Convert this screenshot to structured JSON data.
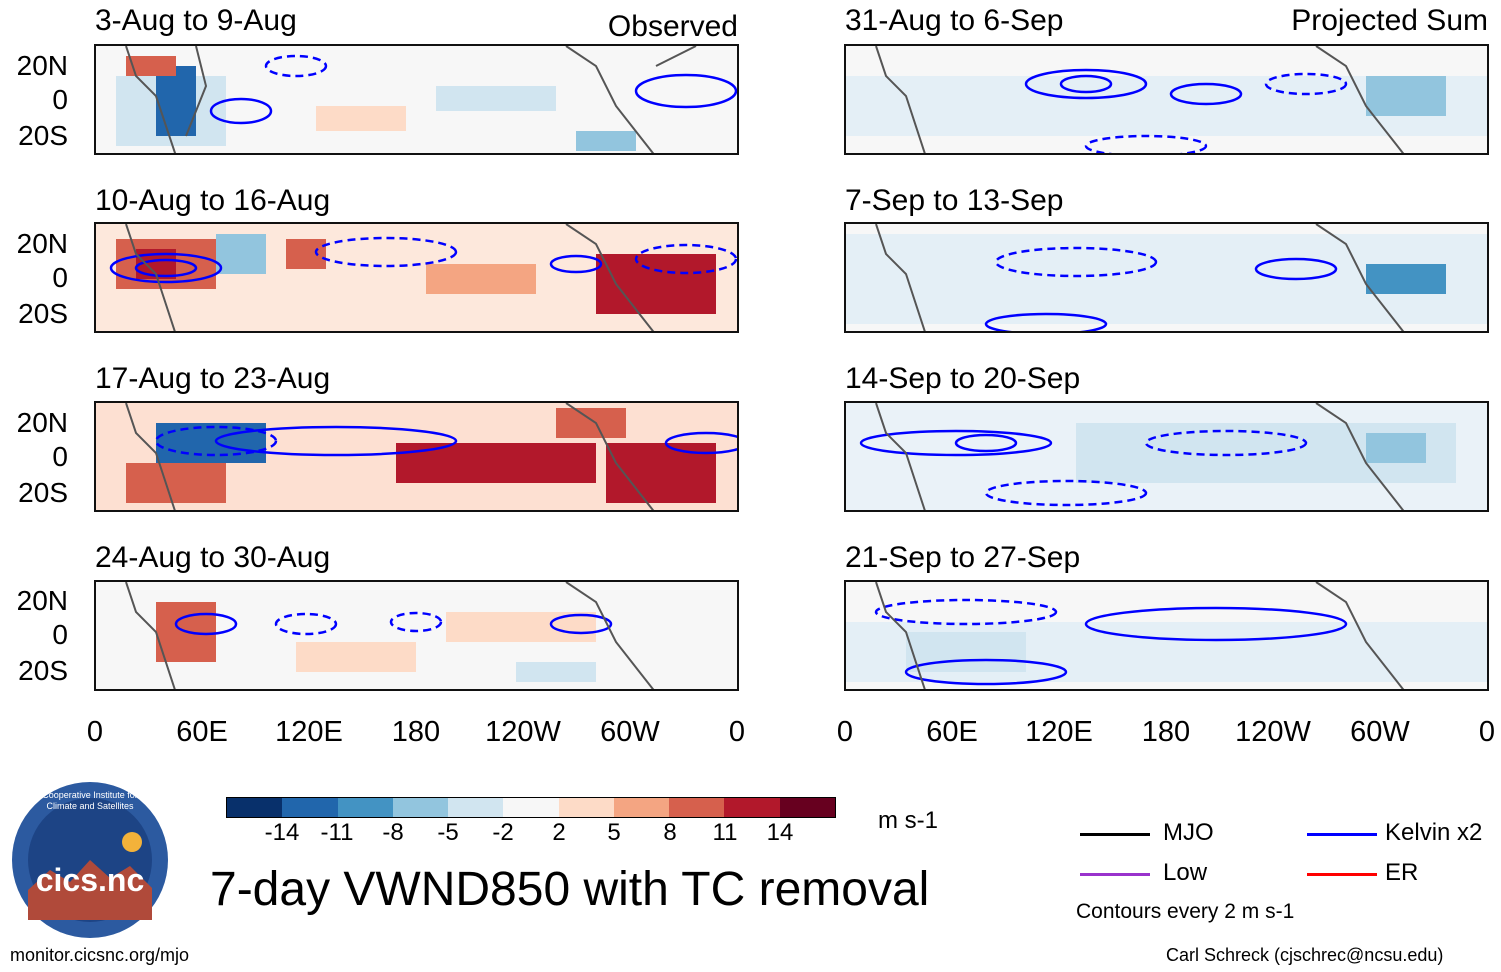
{
  "headers": {
    "left": "Observed",
    "right": "Projected Sum"
  },
  "panels": [
    {
      "period": "3-Aug to 9-Aug",
      "column": "observed"
    },
    {
      "period": "10-Aug to 16-Aug",
      "column": "observed"
    },
    {
      "period": "17-Aug to 23-Aug",
      "column": "observed"
    },
    {
      "period": "24-Aug to 30-Aug",
      "column": "observed"
    },
    {
      "period": "31-Aug to 6-Sep",
      "column": "projected"
    },
    {
      "period": "7-Sep to 13-Sep",
      "column": "projected"
    },
    {
      "period": "14-Sep to 20-Sep",
      "column": "projected"
    },
    {
      "period": "21-Sep to 27-Sep",
      "column": "projected"
    }
  ],
  "lat_labels": [
    "20N",
    "0",
    "20S"
  ],
  "lon_labels": [
    "0",
    "60E",
    "120E",
    "180",
    "120W",
    "60W",
    "0"
  ],
  "colorbar": {
    "labels": [
      "-14",
      "-11",
      "-8",
      "-5",
      "-2",
      "2",
      "5",
      "8",
      "11",
      "14"
    ],
    "colors": [
      "#08306b",
      "#2166ac",
      "#4393c3",
      "#92c5de",
      "#d1e5f0",
      "#f7f7f7",
      "#fddbc7",
      "#f4a582",
      "#d6604d",
      "#b2182b",
      "#67001f"
    ],
    "units": "m s-1"
  },
  "title": "7-day VWND850 with TC removal",
  "legend": {
    "items": [
      {
        "label": "MJO",
        "color": "#000000"
      },
      {
        "label": "Kelvin x2",
        "color": "#0000ff"
      },
      {
        "label": "Low",
        "color": "#9932cc"
      },
      {
        "label": "ER",
        "color": "#ff0000"
      }
    ],
    "note": "Contours every 2 m s-1"
  },
  "logo": {
    "text": "cics.nc",
    "ring_text": "Cooperative Institute for Climate and Satellites"
  },
  "footer": {
    "left": "monitor.cicsnc.org/mjo",
    "right": "Carl Schreck (cjschrec@ncsu.edu)"
  }
}
